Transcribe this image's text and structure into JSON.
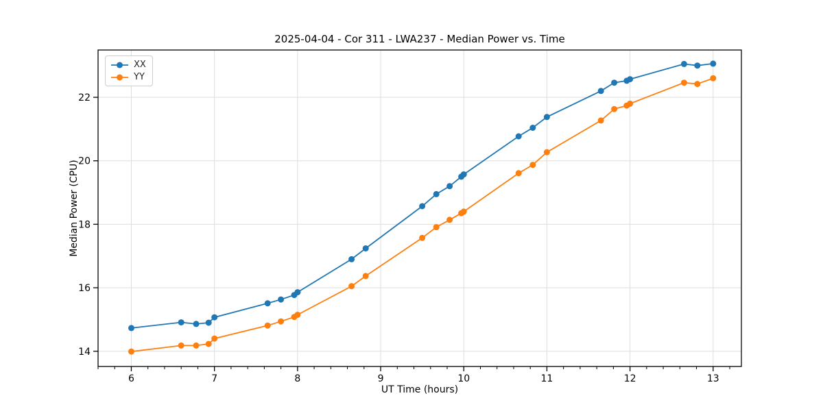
{
  "chart_data": {
    "type": "line",
    "title": "2025-04-04 - Cor 311 - LWA237 - Median Power vs. Time",
    "xlabel": "UT Time (hours)",
    "ylabel": "Median Power (CPU)",
    "xlim": [
      5.6,
      13.34
    ],
    "ylim": [
      13.52,
      23.49
    ],
    "xticks": [
      6,
      7,
      8,
      9,
      10,
      11,
      12,
      13
    ],
    "yticks": [
      14,
      16,
      18,
      20,
      22
    ],
    "minor_xtick_step": 0.2,
    "grid": true,
    "grid_color": "#dddddd",
    "spine_color": "#000000",
    "legend_position": "upper-left",
    "marker": "circle",
    "x": [
      6.0,
      6.6,
      6.78,
      6.93,
      7.0,
      7.64,
      7.8,
      7.96,
      8.0,
      8.65,
      8.82,
      9.5,
      9.67,
      9.83,
      9.97,
      10.0,
      10.66,
      10.83,
      11.0,
      11.65,
      11.81,
      11.96,
      12.0,
      12.65,
      12.81,
      13.0
    ],
    "series": [
      {
        "name": "XX",
        "color": "#1f77b4",
        "values": [
          14.73,
          14.91,
          14.86,
          14.9,
          15.07,
          15.51,
          15.63,
          15.77,
          15.86,
          16.9,
          17.24,
          18.57,
          18.95,
          19.2,
          19.5,
          19.57,
          20.77,
          21.04,
          21.38,
          22.2,
          22.46,
          22.52,
          22.57,
          23.05,
          23.0,
          23.06
        ]
      },
      {
        "name": "YY",
        "color": "#ff7f0e",
        "values": [
          13.99,
          14.18,
          14.18,
          14.23,
          14.4,
          14.81,
          14.94,
          15.08,
          15.15,
          16.05,
          16.37,
          17.57,
          17.91,
          18.14,
          18.35,
          18.4,
          19.61,
          19.87,
          20.27,
          21.27,
          21.63,
          21.74,
          21.8,
          22.46,
          22.42,
          22.6
        ]
      }
    ]
  }
}
